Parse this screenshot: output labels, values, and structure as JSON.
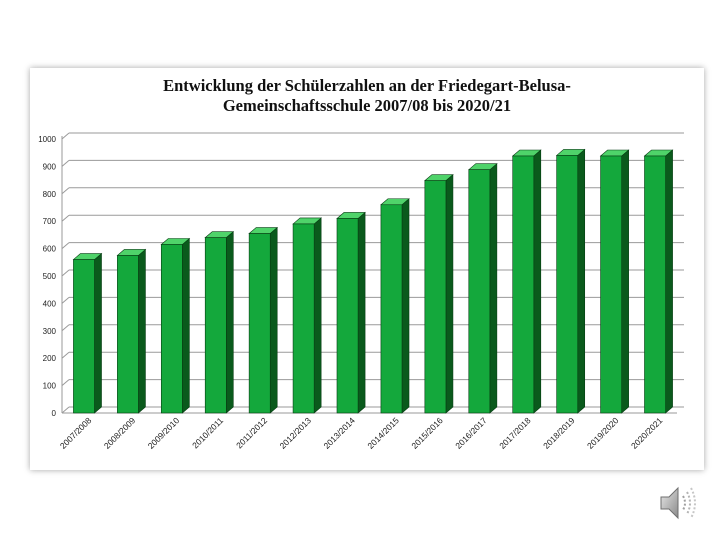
{
  "title_line1": "Entwicklung  der Schülerzahlen an der Friedegart-Belusa-",
  "title_line2": "Gemeinschaftsschule 2007/08 bis 2020/21",
  "colors": {
    "bar_front": "#14a83c",
    "bar_top": "#4fd36a",
    "bar_side": "#0a5a1c",
    "grid": "#9a9a9a",
    "wall": "#ffffff"
  },
  "speaker_icon": "speaker-icon",
  "chart_data": {
    "type": "bar",
    "three_d": true,
    "title": "Entwicklung  der Schülerzahlen an der Friedegart-Belusa-Gemeinschaftsschule 2007/08 bis 2020/21",
    "categories": [
      "2007/2008",
      "2008/2009",
      "2009/2010",
      "2010/2011",
      "2011/2012",
      "2012/2013",
      "2013/2014",
      "2014/2015",
      "2015/2016",
      "2016/2017",
      "2017/2018",
      "2018/2019",
      "2019/2020",
      "2020/2021"
    ],
    "values": [
      560,
      575,
      615,
      640,
      655,
      690,
      710,
      760,
      848,
      888,
      938,
      940,
      938,
      938
    ],
    "ylim": [
      0,
      1000
    ],
    "yticks": [
      0,
      100,
      200,
      300,
      400,
      500,
      600,
      700,
      800,
      900,
      1000
    ],
    "xlabel": "",
    "ylabel": "",
    "grid": true,
    "legend": "none"
  }
}
